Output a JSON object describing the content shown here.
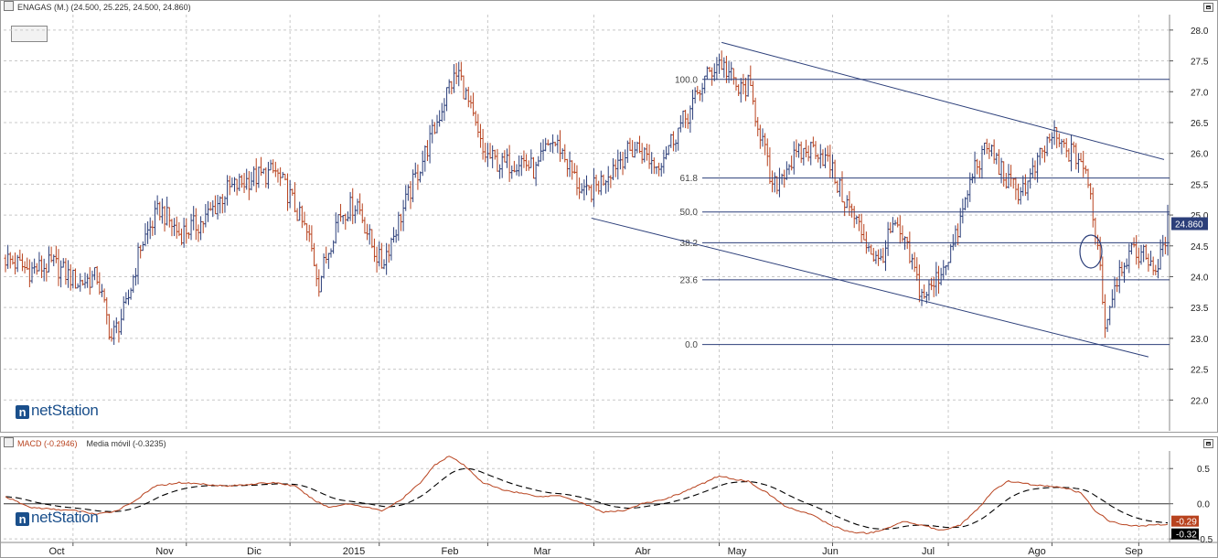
{
  "header": {
    "price_title": "ENAGAS (M.) (24.500, 25.225, 24.500, 24.860)",
    "macd_label": "MACD (-0.2946)",
    "ma_label": "Media móvil (-0.3235)"
  },
  "brand": {
    "name": "netStation",
    "mark": "n"
  },
  "colors": {
    "up_bar": "#2c3f7a",
    "down_bar": "#b8431f",
    "macd_line": "#b8431f",
    "signal_line": "#000000",
    "grid": "#c8c8c8",
    "trend_line": "#2c3f7a",
    "last_price_bg": "#2c3f7a",
    "macd_value_bg": "#b8431f",
    "signal_value_bg": "#000000"
  },
  "chart_data": [
    {
      "type": "ohlc",
      "title": "ENAGAS (M.) (24.500, 25.225, 24.500, 24.860)",
      "ylim": [
        21.5,
        28.25
      ],
      "y_ticks": [
        "28.0",
        "27.5",
        "27.0",
        "26.5",
        "26.0",
        "25.5",
        "25.0",
        "24.5",
        "24.0",
        "23.5",
        "23.0",
        "22.5",
        "22.0"
      ],
      "last_price": "24.860",
      "x_labels": [
        "Oct",
        "Nov",
        "Dic",
        "2015",
        "Feb",
        "Mar",
        "Abr",
        "May",
        "Jun",
        "Jul",
        "Ago",
        "Sep"
      ],
      "close_anchors": [
        [
          0,
          24.3
        ],
        [
          10,
          24.1
        ],
        [
          20,
          24.2
        ],
        [
          30,
          23.9
        ],
        [
          38,
          24.0
        ],
        [
          44,
          23.0
        ],
        [
          50,
          23.5
        ],
        [
          56,
          24.5
        ],
        [
          64,
          25.1
        ],
        [
          72,
          24.7
        ],
        [
          82,
          24.9
        ],
        [
          92,
          25.4
        ],
        [
          102,
          25.6
        ],
        [
          112,
          25.7
        ],
        [
          118,
          25.3
        ],
        [
          126,
          24.6
        ],
        [
          130,
          23.9
        ],
        [
          138,
          25.0
        ],
        [
          146,
          25.2
        ],
        [
          152,
          24.5
        ],
        [
          156,
          24.2
        ],
        [
          164,
          25.0
        ],
        [
          172,
          25.8
        ],
        [
          178,
          26.4
        ],
        [
          184,
          27.1
        ],
        [
          188,
          27.3
        ],
        [
          192,
          26.8
        ],
        [
          198,
          26.0
        ],
        [
          206,
          25.8
        ],
        [
          214,
          25.9
        ],
        [
          220,
          25.7
        ],
        [
          226,
          26.2
        ],
        [
          230,
          26.1
        ],
        [
          236,
          25.6
        ],
        [
          240,
          25.3
        ],
        [
          246,
          25.5
        ],
        [
          254,
          25.9
        ],
        [
          262,
          26.1
        ],
        [
          270,
          25.8
        ],
        [
          276,
          26.2
        ],
        [
          284,
          26.7
        ],
        [
          290,
          27.2
        ],
        [
          296,
          27.5
        ],
        [
          300,
          27.3
        ],
        [
          304,
          27.0
        ],
        [
          308,
          27.1
        ],
        [
          314,
          26.2
        ],
        [
          318,
          25.4
        ],
        [
          324,
          25.8
        ],
        [
          330,
          26.0
        ],
        [
          336,
          26.1
        ],
        [
          342,
          25.8
        ],
        [
          346,
          25.4
        ],
        [
          350,
          25.1
        ],
        [
          354,
          24.8
        ],
        [
          358,
          24.5
        ],
        [
          362,
          24.2
        ],
        [
          368,
          24.8
        ],
        [
          372,
          24.6
        ],
        [
          376,
          24.2
        ],
        [
          380,
          23.7
        ],
        [
          384,
          23.8
        ],
        [
          388,
          24.1
        ],
        [
          394,
          24.6
        ],
        [
          398,
          25.2
        ],
        [
          402,
          25.8
        ],
        [
          408,
          26.1
        ],
        [
          412,
          25.8
        ],
        [
          416,
          25.5
        ],
        [
          420,
          25.4
        ],
        [
          424,
          25.5
        ],
        [
          430,
          26.0
        ],
        [
          434,
          26.3
        ],
        [
          438,
          26.1
        ],
        [
          442,
          26.0
        ],
        [
          446,
          25.9
        ],
        [
          450,
          25.3
        ],
        [
          454,
          24.2
        ],
        [
          456,
          23.2
        ],
        [
          460,
          23.9
        ],
        [
          464,
          24.3
        ],
        [
          470,
          24.4
        ],
        [
          474,
          24.3
        ],
        [
          478,
          24.1
        ],
        [
          482,
          24.86
        ]
      ],
      "fibonacci": {
        "levels": [
          {
            "label": "100.0",
            "value": 27.2
          },
          {
            "label": "61.8",
            "value": 25.6
          },
          {
            "label": "50.0",
            "value": 25.05
          },
          {
            "label": "38.2",
            "value": 24.55
          },
          {
            "label": "23.6",
            "value": 23.95
          },
          {
            "label": "0.0",
            "value": 22.9
          }
        ]
      },
      "trend_lines": [
        {
          "from": {
            "x": "2015-03",
            "y": 24.95
          },
          "to": {
            "x": "2015-09",
            "y": 22.7
          }
        },
        {
          "from": {
            "x": "2015-04",
            "y": 27.8
          },
          "to": {
            "x": "2015-09",
            "y": 25.9
          }
        }
      ]
    },
    {
      "type": "line",
      "title": "MACD (-0.2946)",
      "ylim": [
        -0.55,
        0.75
      ],
      "y_ticks": [
        "0.5",
        "0.0",
        "-0.5"
      ],
      "series": [
        {
          "name": "MACD (-0.2946)",
          "value_label": "-0.29"
        },
        {
          "name": "Media móvil (-0.3235)",
          "value_label": "-0.32"
        }
      ],
      "macd_anchors": [
        [
          0,
          0.1
        ],
        [
          10,
          -0.05
        ],
        [
          20,
          -0.08
        ],
        [
          30,
          -0.1
        ],
        [
          38,
          -0.15
        ],
        [
          46,
          -0.1
        ],
        [
          54,
          0.05
        ],
        [
          62,
          0.25
        ],
        [
          72,
          0.3
        ],
        [
          82,
          0.28
        ],
        [
          92,
          0.25
        ],
        [
          102,
          0.28
        ],
        [
          112,
          0.3
        ],
        [
          120,
          0.25
        ],
        [
          128,
          0.05
        ],
        [
          134,
          -0.05
        ],
        [
          142,
          0.0
        ],
        [
          150,
          -0.05
        ],
        [
          156,
          -0.1
        ],
        [
          164,
          0.05
        ],
        [
          172,
          0.3
        ],
        [
          178,
          0.55
        ],
        [
          184,
          0.68
        ],
        [
          190,
          0.55
        ],
        [
          198,
          0.3
        ],
        [
          206,
          0.2
        ],
        [
          214,
          0.15
        ],
        [
          222,
          0.1
        ],
        [
          230,
          0.12
        ],
        [
          240,
          0.0
        ],
        [
          248,
          -0.12
        ],
        [
          256,
          -0.1
        ],
        [
          264,
          0.0
        ],
        [
          272,
          0.05
        ],
        [
          280,
          0.15
        ],
        [
          290,
          0.3
        ],
        [
          296,
          0.4
        ],
        [
          302,
          0.35
        ],
        [
          308,
          0.32
        ],
        [
          316,
          0.15
        ],
        [
          324,
          -0.05
        ],
        [
          334,
          -0.15
        ],
        [
          342,
          -0.3
        ],
        [
          350,
          -0.4
        ],
        [
          358,
          -0.42
        ],
        [
          366,
          -0.35
        ],
        [
          372,
          -0.25
        ],
        [
          380,
          -0.3
        ],
        [
          388,
          -0.38
        ],
        [
          396,
          -0.3
        ],
        [
          404,
          -0.05
        ],
        [
          410,
          0.2
        ],
        [
          416,
          0.32
        ],
        [
          424,
          0.28
        ],
        [
          432,
          0.25
        ],
        [
          440,
          0.22
        ],
        [
          446,
          0.15
        ],
        [
          452,
          -0.1
        ],
        [
          458,
          -0.25
        ],
        [
          464,
          -0.3
        ],
        [
          470,
          -0.32
        ],
        [
          476,
          -0.3
        ],
        [
          482,
          -0.29
        ]
      ]
    }
  ]
}
